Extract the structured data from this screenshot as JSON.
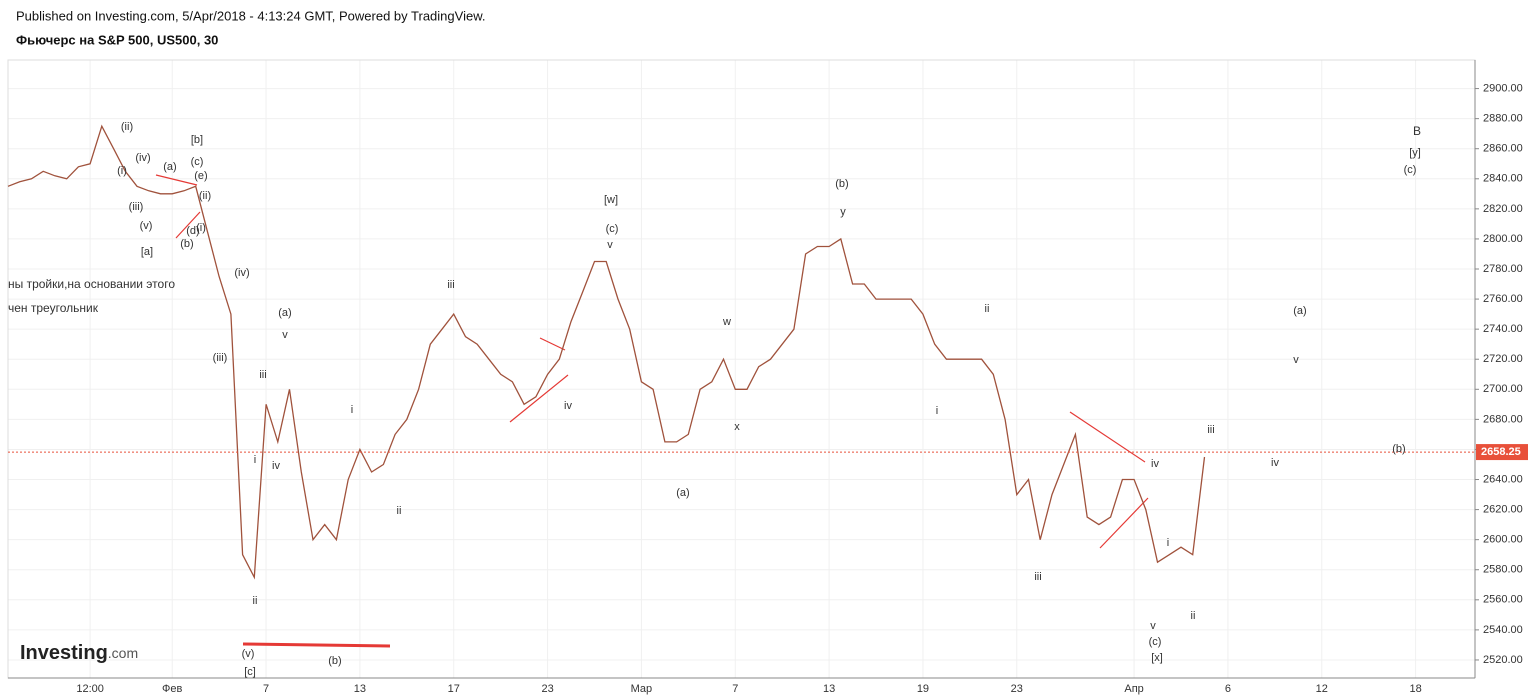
{
  "header": {
    "published": "Published on Investing.com, 5/Apr/2018 - 4:13:24 GMT, Powered by TradingView.",
    "instrument": "Фьючерс на S&P 500, US500, 30"
  },
  "chart_data": {
    "type": "line",
    "categories": [
      null,
      null,
      null,
      null,
      null,
      null,
      null,
      "12:00",
      null,
      null,
      null,
      null,
      null,
      null,
      "Фев",
      null,
      null,
      null,
      null,
      null,
      null,
      null,
      "7",
      null,
      null,
      null,
      null,
      null,
      null,
      null,
      "13",
      null,
      null,
      null,
      null,
      null,
      null,
      null,
      "17",
      null,
      null,
      null,
      null,
      null,
      null,
      null,
      "23",
      null,
      null,
      null,
      null,
      null,
      null,
      null,
      "Мар",
      null,
      null,
      null,
      null,
      null,
      null,
      null,
      "7",
      null,
      null,
      null,
      null,
      null,
      null,
      null,
      "13",
      null,
      null,
      null,
      null,
      null,
      null,
      null,
      "19",
      null,
      null,
      null,
      null,
      null,
      null,
      null,
      "23",
      null,
      null,
      null,
      null,
      null,
      null,
      null,
      null,
      null,
      "Апр",
      null,
      null,
      null,
      null,
      null,
      null,
      null,
      "6",
      null,
      null,
      null,
      null,
      null,
      null,
      null,
      "12",
      null,
      null,
      null,
      null,
      null,
      null,
      null,
      "18",
      null,
      null,
      null,
      null,
      null
    ],
    "series": [
      {
        "name": "US500",
        "color": "#a0523c",
        "values": [
          2835,
          2838,
          2840,
          2845,
          2842,
          2840,
          2848,
          2850,
          2875,
          2860,
          2845,
          2835,
          2832,
          2830,
          2830,
          2832,
          2835,
          2805,
          2775,
          2750,
          2590,
          2575,
          2690,
          2665,
          2700,
          2645,
          2600,
          2610,
          2600,
          2640,
          2660,
          2645,
          2650,
          2670,
          2680,
          2700,
          2730,
          2740,
          2750,
          2735,
          2730,
          2720,
          2710,
          2705,
          2690,
          2695,
          2710,
          2720,
          2745,
          2765,
          2785,
          2785,
          2760,
          2740,
          2705,
          2700,
          2665,
          2665,
          2670,
          2700,
          2705,
          2720,
          2700,
          2700,
          2715,
          2720,
          2730,
          2740,
          2790,
          2795,
          2795,
          2800,
          2770,
          2770,
          2760,
          2760,
          2760,
          2760,
          2750,
          2730,
          2720,
          2720,
          2720,
          2720,
          2710,
          2680,
          2630,
          2640,
          2600,
          2630,
          2650,
          2670,
          2615,
          2610,
          2615,
          2640,
          2640,
          2620,
          2585,
          2590,
          2595,
          2590,
          2655,
          null,
          null,
          null,
          null,
          null,
          null,
          null,
          null,
          null,
          null,
          null,
          null,
          null,
          null,
          null,
          null,
          null,
          null,
          null,
          null,
          null,
          null,
          null
        ]
      }
    ],
    "ylim": [
      2508,
      2919
    ],
    "yticks": [
      {
        "value": 2520,
        "label": "2520.00"
      },
      {
        "value": 2540,
        "label": "2540.00"
      },
      {
        "value": 2560,
        "label": "2560.00"
      },
      {
        "value": 2580,
        "label": "2580.00"
      },
      {
        "value": 2600,
        "label": "2600.00"
      },
      {
        "value": 2620,
        "label": "2620.00"
      },
      {
        "value": 2640,
        "label": "2640.00"
      },
      {
        "value": 2660,
        "label": "2660.00"
      },
      {
        "value": 2680,
        "label": "2680.00"
      },
      {
        "value": 2700,
        "label": "2700.00"
      },
      {
        "value": 2720,
        "label": "2720.00"
      },
      {
        "value": 2740,
        "label": "2740.00"
      },
      {
        "value": 2760,
        "label": "2760.00"
      },
      {
        "value": 2780,
        "label": "2780.00"
      },
      {
        "value": 2800,
        "label": "2800.00"
      },
      {
        "value": 2820,
        "label": "2820.00"
      },
      {
        "value": 2840,
        "label": "2840.00"
      },
      {
        "value": 2860,
        "label": "2860.00"
      },
      {
        "value": 2880,
        "label": "2880.00"
      },
      {
        "value": 2900,
        "label": "2900.00"
      }
    ],
    "grid": true,
    "last_price": 2658.25,
    "last_price_color": "#e8503a",
    "annotations": [
      "(ii)",
      "(iv)",
      "(i)",
      "(a)",
      "(c)",
      "[b]",
      "(e)",
      "(ii)",
      "(iii)",
      "(v)",
      "(b)",
      "(d)",
      "(i)",
      "[a]",
      "(iv)",
      "(iii)",
      "(a)",
      "v",
      "iii",
      "i",
      "iv",
      "ii",
      "(v)",
      "[c]",
      "(b)",
      "i",
      "ii",
      "iii",
      "iv",
      "[w]",
      "(c)",
      "v",
      "w",
      "x",
      "(a)",
      "(b)",
      "y",
      "ii",
      "i",
      "iii",
      "iv",
      "v",
      "(c)",
      "[x]",
      "i",
      "ii",
      "iii",
      "iv",
      "v",
      "(a)",
      "(b)",
      "B",
      "[y]",
      "(c)",
      "ны тройки,на основании этого",
      "чен треугольник"
    ],
    "watermark": "Investing",
    "watermark_suffix": ".com"
  }
}
